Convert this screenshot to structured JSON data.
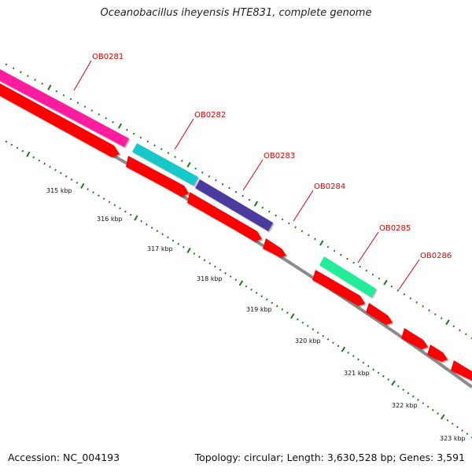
{
  "title": "Oceanobacillus iheyensis HTE831, complete genome",
  "footer": {
    "accession": "Accession: NC_004193",
    "summary": "Topology: circular; Length: 3,630,528 bp; Genes: 3,591"
  },
  "colors": {
    "backbone": "#8c8c8c",
    "gene_cds": "#ff0000",
    "tick": "#1a7a1a",
    "label": "#e00000"
  },
  "highlighted_genes": [
    {
      "label": "OB0281",
      "color": "#ff1f9f"
    },
    {
      "label": "OB0282",
      "color": "#19c8c8"
    },
    {
      "label": "OB0283",
      "color": "#4b3b9e"
    },
    {
      "label": "OB0284",
      "color": "#4b3b9e"
    },
    {
      "label": "OB0285",
      "color": "#22ee99"
    },
    {
      "label": "OB0286",
      "color": "#22ee99"
    }
  ],
  "scale_labels": [
    "315 kbp",
    "316 kbp",
    "317 kbp",
    "318 kbp",
    "319 kbp",
    "320 kbp",
    "321 kbp",
    "322 kbp",
    "323 kbp"
  ]
}
